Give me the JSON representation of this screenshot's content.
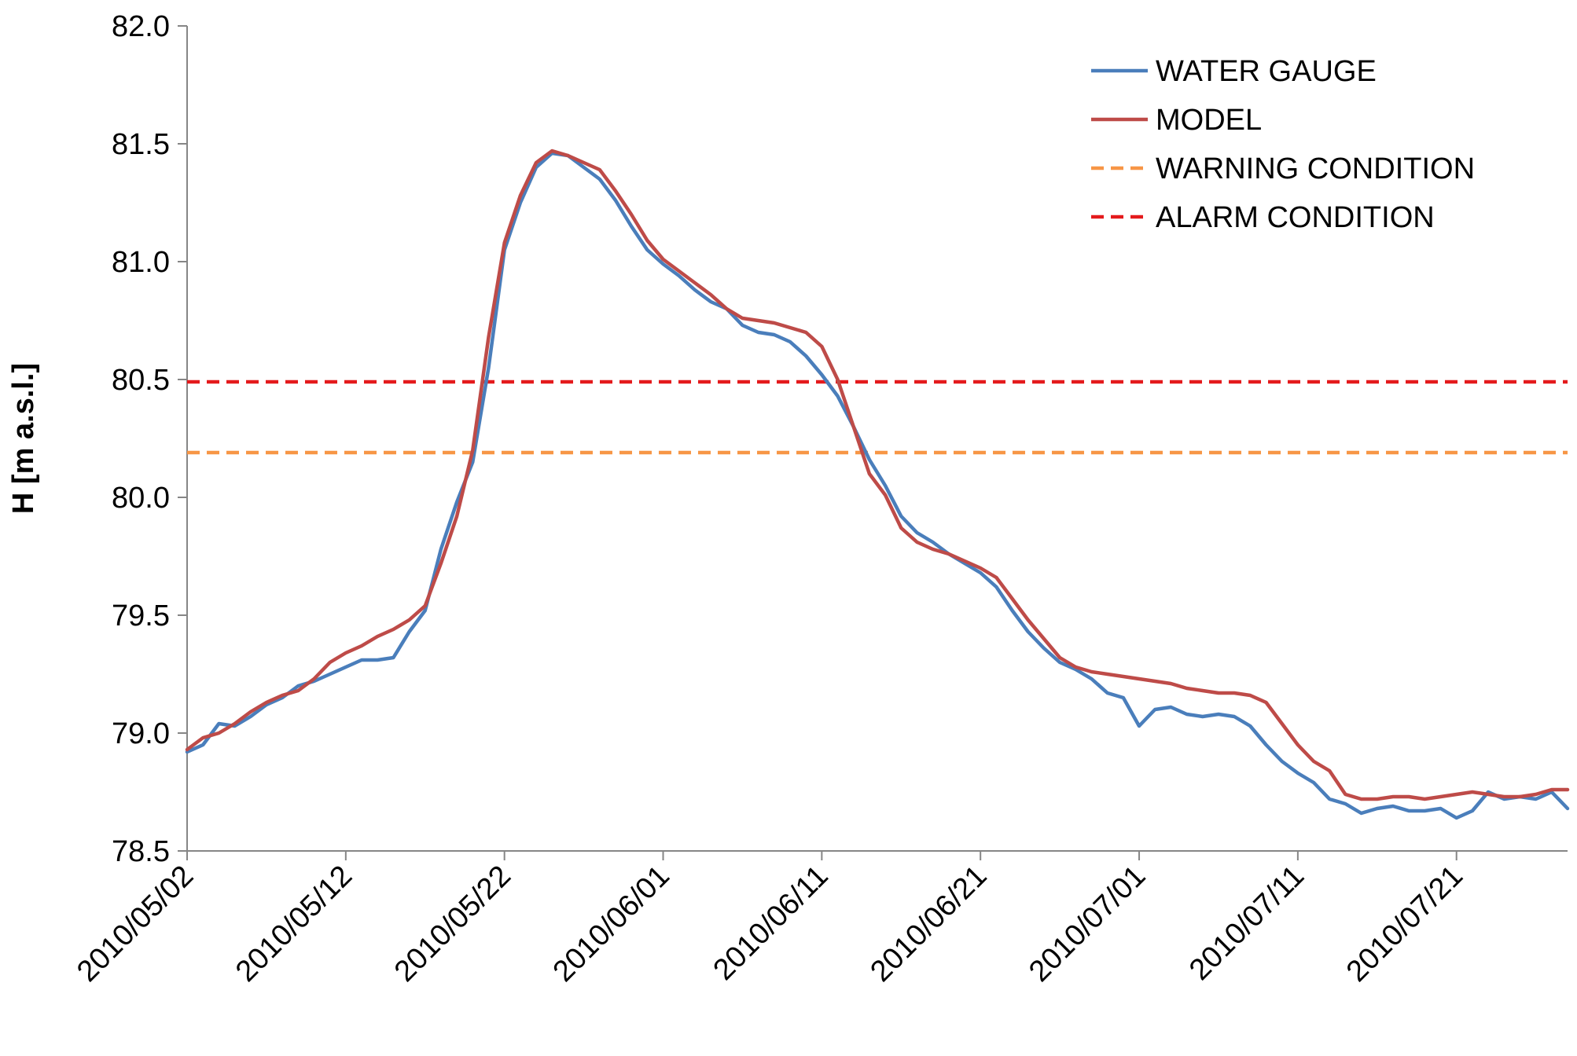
{
  "chart_data": {
    "type": "line",
    "title": "",
    "xlabel": "",
    "ylabel": "H [m a.s.l.]",
    "ylim": [
      78.5,
      82.0
    ],
    "y_ticks": [
      "78.5",
      "79.0",
      "79.5",
      "80.0",
      "80.5",
      "81.0",
      "81.5",
      "82.0"
    ],
    "x_ticks": [
      "2010/05/02",
      "2010/05/12",
      "2010/05/22",
      "2010/06/01",
      "2010/06/11",
      "2010/06/21",
      "2010/07/01",
      "2010/07/11",
      "2010/07/21"
    ],
    "x_range": [
      "2010/05/02",
      "2010/07/28"
    ],
    "grid": false,
    "legend_position": "top-right",
    "colors": {
      "water_gauge": "#4a7ebb",
      "model": "#be4b48",
      "warning": "#f79646",
      "alarm": "#e41a1c"
    },
    "series": [
      {
        "name": "WATER GAUGE",
        "color": "#4a7ebb",
        "style": "solid",
        "points": [
          [
            "2010/05/02",
            78.92
          ],
          [
            "2010/05/03",
            78.95
          ],
          [
            "2010/05/04",
            79.04
          ],
          [
            "2010/05/05",
            79.03
          ],
          [
            "2010/05/06",
            79.07
          ],
          [
            "2010/05/07",
            79.12
          ],
          [
            "2010/05/08",
            79.15
          ],
          [
            "2010/05/09",
            79.2
          ],
          [
            "2010/05/10",
            79.22
          ],
          [
            "2010/05/11",
            79.25
          ],
          [
            "2010/05/12",
            79.28
          ],
          [
            "2010/05/13",
            79.31
          ],
          [
            "2010/05/14",
            79.31
          ],
          [
            "2010/05/15",
            79.32
          ],
          [
            "2010/05/16",
            79.43
          ],
          [
            "2010/05/17",
            79.52
          ],
          [
            "2010/05/18",
            79.78
          ],
          [
            "2010/05/19",
            79.98
          ],
          [
            "2010/05/20",
            80.15
          ],
          [
            "2010/05/21",
            80.55
          ],
          [
            "2010/05/22",
            81.05
          ],
          [
            "2010/05/23",
            81.25
          ],
          [
            "2010/05/24",
            81.4
          ],
          [
            "2010/05/25",
            81.46
          ],
          [
            "2010/05/26",
            81.45
          ],
          [
            "2010/05/27",
            81.4
          ],
          [
            "2010/05/28",
            81.35
          ],
          [
            "2010/05/29",
            81.26
          ],
          [
            "2010/05/30",
            81.15
          ],
          [
            "2010/05/31",
            81.05
          ],
          [
            "2010/06/01",
            80.99
          ],
          [
            "2010/06/02",
            80.94
          ],
          [
            "2010/06/03",
            80.88
          ],
          [
            "2010/06/04",
            80.83
          ],
          [
            "2010/06/05",
            80.8
          ],
          [
            "2010/06/06",
            80.73
          ],
          [
            "2010/06/07",
            80.7
          ],
          [
            "2010/06/08",
            80.69
          ],
          [
            "2010/06/09",
            80.66
          ],
          [
            "2010/06/10",
            80.6
          ],
          [
            "2010/06/11",
            80.52
          ],
          [
            "2010/06/12",
            80.43
          ],
          [
            "2010/06/13",
            80.3
          ],
          [
            "2010/06/14",
            80.16
          ],
          [
            "2010/06/15",
            80.05
          ],
          [
            "2010/06/16",
            79.92
          ],
          [
            "2010/06/17",
            79.85
          ],
          [
            "2010/06/18",
            79.81
          ],
          [
            "2010/06/19",
            79.76
          ],
          [
            "2010/06/20",
            79.72
          ],
          [
            "2010/06/21",
            79.68
          ],
          [
            "2010/06/22",
            79.62
          ],
          [
            "2010/06/23",
            79.52
          ],
          [
            "2010/06/24",
            79.43
          ],
          [
            "2010/06/25",
            79.36
          ],
          [
            "2010/06/26",
            79.3
          ],
          [
            "2010/06/27",
            79.27
          ],
          [
            "2010/06/28",
            79.23
          ],
          [
            "2010/06/29",
            79.17
          ],
          [
            "2010/06/30",
            79.15
          ],
          [
            "2010/07/01",
            79.03
          ],
          [
            "2010/07/02",
            79.1
          ],
          [
            "2010/07/03",
            79.11
          ],
          [
            "2010/07/04",
            79.08
          ],
          [
            "2010/07/05",
            79.07
          ],
          [
            "2010/07/06",
            79.08
          ],
          [
            "2010/07/07",
            79.07
          ],
          [
            "2010/07/08",
            79.03
          ],
          [
            "2010/07/09",
            78.95
          ],
          [
            "2010/07/10",
            78.88
          ],
          [
            "2010/07/11",
            78.83
          ],
          [
            "2010/07/12",
            78.79
          ],
          [
            "2010/07/13",
            78.72
          ],
          [
            "2010/07/14",
            78.7
          ],
          [
            "2010/07/15",
            78.66
          ],
          [
            "2010/07/16",
            78.68
          ],
          [
            "2010/07/17",
            78.69
          ],
          [
            "2010/07/18",
            78.67
          ],
          [
            "2010/07/19",
            78.67
          ],
          [
            "2010/07/20",
            78.68
          ],
          [
            "2010/07/21",
            78.64
          ],
          [
            "2010/07/22",
            78.67
          ],
          [
            "2010/07/23",
            78.75
          ],
          [
            "2010/07/24",
            78.72
          ],
          [
            "2010/07/25",
            78.73
          ],
          [
            "2010/07/26",
            78.72
          ],
          [
            "2010/07/27",
            78.75
          ],
          [
            "2010/07/28",
            78.68
          ]
        ]
      },
      {
        "name": "MODEL",
        "color": "#be4b48",
        "style": "solid",
        "points": [
          [
            "2010/05/02",
            78.93
          ],
          [
            "2010/05/03",
            78.98
          ],
          [
            "2010/05/04",
            79.0
          ],
          [
            "2010/05/05",
            79.04
          ],
          [
            "2010/05/06",
            79.09
          ],
          [
            "2010/05/07",
            79.13
          ],
          [
            "2010/05/08",
            79.16
          ],
          [
            "2010/05/09",
            79.18
          ],
          [
            "2010/05/10",
            79.23
          ],
          [
            "2010/05/11",
            79.3
          ],
          [
            "2010/05/12",
            79.34
          ],
          [
            "2010/05/13",
            79.37
          ],
          [
            "2010/05/14",
            79.41
          ],
          [
            "2010/05/15",
            79.44
          ],
          [
            "2010/05/16",
            79.48
          ],
          [
            "2010/05/17",
            79.54
          ],
          [
            "2010/05/18",
            79.72
          ],
          [
            "2010/05/19",
            79.92
          ],
          [
            "2010/05/20",
            80.2
          ],
          [
            "2010/05/21",
            80.68
          ],
          [
            "2010/05/22",
            81.08
          ],
          [
            "2010/05/23",
            81.28
          ],
          [
            "2010/05/24",
            81.42
          ],
          [
            "2010/05/25",
            81.47
          ],
          [
            "2010/05/26",
            81.45
          ],
          [
            "2010/05/27",
            81.42
          ],
          [
            "2010/05/28",
            81.39
          ],
          [
            "2010/05/29",
            81.3
          ],
          [
            "2010/05/30",
            81.2
          ],
          [
            "2010/05/31",
            81.09
          ],
          [
            "2010/06/01",
            81.01
          ],
          [
            "2010/06/02",
            80.96
          ],
          [
            "2010/06/03",
            80.91
          ],
          [
            "2010/06/04",
            80.86
          ],
          [
            "2010/06/05",
            80.8
          ],
          [
            "2010/06/06",
            80.76
          ],
          [
            "2010/06/07",
            80.75
          ],
          [
            "2010/06/08",
            80.74
          ],
          [
            "2010/06/09",
            80.72
          ],
          [
            "2010/06/10",
            80.7
          ],
          [
            "2010/06/11",
            80.64
          ],
          [
            "2010/06/12",
            80.5
          ],
          [
            "2010/06/13",
            80.3
          ],
          [
            "2010/06/14",
            80.1
          ],
          [
            "2010/06/15",
            80.01
          ],
          [
            "2010/06/16",
            79.87
          ],
          [
            "2010/06/17",
            79.81
          ],
          [
            "2010/06/18",
            79.78
          ],
          [
            "2010/06/19",
            79.76
          ],
          [
            "2010/06/20",
            79.73
          ],
          [
            "2010/06/21",
            79.7
          ],
          [
            "2010/06/22",
            79.66
          ],
          [
            "2010/06/23",
            79.57
          ],
          [
            "2010/06/24",
            79.48
          ],
          [
            "2010/06/25",
            79.4
          ],
          [
            "2010/06/26",
            79.32
          ],
          [
            "2010/06/27",
            79.28
          ],
          [
            "2010/06/28",
            79.26
          ],
          [
            "2010/06/29",
            79.25
          ],
          [
            "2010/06/30",
            79.24
          ],
          [
            "2010/07/01",
            79.23
          ],
          [
            "2010/07/02",
            79.22
          ],
          [
            "2010/07/03",
            79.21
          ],
          [
            "2010/07/04",
            79.19
          ],
          [
            "2010/07/05",
            79.18
          ],
          [
            "2010/07/06",
            79.17
          ],
          [
            "2010/07/07",
            79.17
          ],
          [
            "2010/07/08",
            79.16
          ],
          [
            "2010/07/09",
            79.13
          ],
          [
            "2010/07/10",
            79.04
          ],
          [
            "2010/07/11",
            78.95
          ],
          [
            "2010/07/12",
            78.88
          ],
          [
            "2010/07/13",
            78.84
          ],
          [
            "2010/07/14",
            78.74
          ],
          [
            "2010/07/15",
            78.72
          ],
          [
            "2010/07/16",
            78.72
          ],
          [
            "2010/07/17",
            78.73
          ],
          [
            "2010/07/18",
            78.73
          ],
          [
            "2010/07/19",
            78.72
          ],
          [
            "2010/07/20",
            78.73
          ],
          [
            "2010/07/21",
            78.74
          ],
          [
            "2010/07/22",
            78.75
          ],
          [
            "2010/07/23",
            78.74
          ],
          [
            "2010/07/24",
            78.73
          ],
          [
            "2010/07/25",
            78.73
          ],
          [
            "2010/07/26",
            78.74
          ],
          [
            "2010/07/27",
            78.76
          ],
          [
            "2010/07/28",
            78.76
          ]
        ]
      },
      {
        "name": "WARNING CONDITION",
        "color": "#f79646",
        "style": "dashed",
        "constant": 80.19
      },
      {
        "name": "ALARM CONDITION",
        "color": "#e41a1c",
        "style": "dashed",
        "constant": 80.49
      }
    ]
  }
}
